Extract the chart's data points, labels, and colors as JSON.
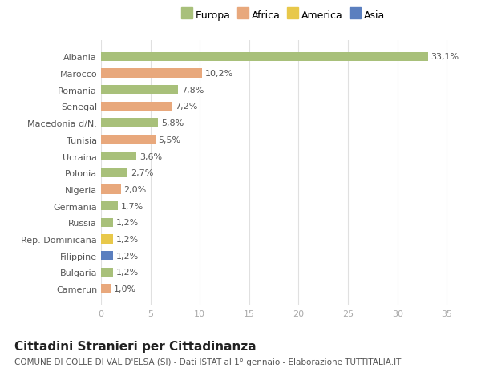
{
  "title": "Cittadini Stranieri per Cittadinanza",
  "subtitle": "COMUNE DI COLLE DI VAL D'ELSA (SI) - Dati ISTAT al 1° gennaio - Elaborazione TUTTITALIA.IT",
  "categories": [
    "Albania",
    "Marocco",
    "Romania",
    "Senegal",
    "Macedonia d/N.",
    "Tunisia",
    "Ucraina",
    "Polonia",
    "Nigeria",
    "Germania",
    "Russia",
    "Rep. Dominicana",
    "Filippine",
    "Bulgaria",
    "Camerun"
  ],
  "values": [
    33.1,
    10.2,
    7.8,
    7.2,
    5.8,
    5.5,
    3.6,
    2.7,
    2.0,
    1.7,
    1.2,
    1.2,
    1.2,
    1.2,
    1.0
  ],
  "labels": [
    "33,1%",
    "10,2%",
    "7,8%",
    "7,2%",
    "5,8%",
    "5,5%",
    "3,6%",
    "2,7%",
    "2,0%",
    "1,7%",
    "1,2%",
    "1,2%",
    "1,2%",
    "1,2%",
    "1,0%"
  ],
  "colors": [
    "#a8c07a",
    "#e8a87c",
    "#a8c07a",
    "#e8a87c",
    "#a8c07a",
    "#e8a87c",
    "#a8c07a",
    "#a8c07a",
    "#e8a87c",
    "#a8c07a",
    "#a8c07a",
    "#e8c84a",
    "#5b7fbf",
    "#a8c07a",
    "#e8a87c"
  ],
  "legend_labels": [
    "Europa",
    "Africa",
    "America",
    "Asia"
  ],
  "legend_colors": [
    "#a8c07a",
    "#e8a87c",
    "#e8c84a",
    "#5b7fbf"
  ],
  "xlim": [
    0,
    37
  ],
  "xticks": [
    0,
    5,
    10,
    15,
    20,
    25,
    30,
    35
  ],
  "background_color": "#ffffff",
  "plot_background": "#ffffff",
  "bar_height": 0.55,
  "label_fontsize": 8,
  "tick_fontsize": 8,
  "title_fontsize": 11,
  "subtitle_fontsize": 7.5
}
